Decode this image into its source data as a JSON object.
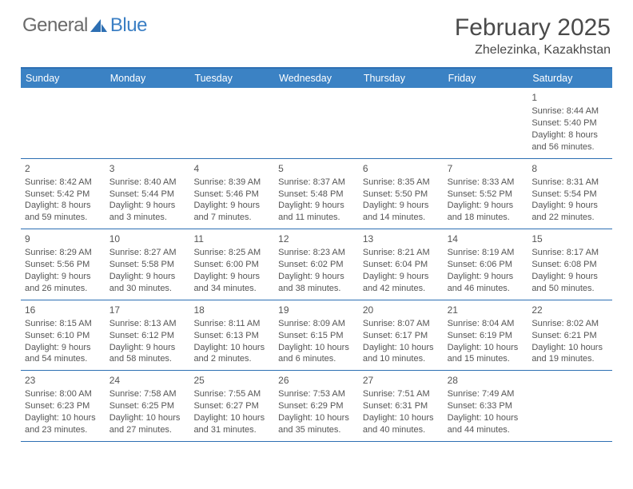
{
  "logo": {
    "text1": "General",
    "text2": "Blue"
  },
  "title": "February 2025",
  "location": "Zhelezinka, Kazakhstan",
  "colors": {
    "header_bar": "#3b82c4",
    "border": "#2d6fb3",
    "text": "#4a4a4a",
    "cell_text": "#555555",
    "logo_blue": "#3b7fc4",
    "logo_gray": "#6a6a6a",
    "background": "#ffffff"
  },
  "weekdays": [
    "Sunday",
    "Monday",
    "Tuesday",
    "Wednesday",
    "Thursday",
    "Friday",
    "Saturday"
  ],
  "weeks": [
    [
      null,
      null,
      null,
      null,
      null,
      null,
      {
        "n": "1",
        "sunrise": "8:44 AM",
        "sunset": "5:40 PM",
        "daylight": "8 hours and 56 minutes."
      }
    ],
    [
      {
        "n": "2",
        "sunrise": "8:42 AM",
        "sunset": "5:42 PM",
        "daylight": "8 hours and 59 minutes."
      },
      {
        "n": "3",
        "sunrise": "8:40 AM",
        "sunset": "5:44 PM",
        "daylight": "9 hours and 3 minutes."
      },
      {
        "n": "4",
        "sunrise": "8:39 AM",
        "sunset": "5:46 PM",
        "daylight": "9 hours and 7 minutes."
      },
      {
        "n": "5",
        "sunrise": "8:37 AM",
        "sunset": "5:48 PM",
        "daylight": "9 hours and 11 minutes."
      },
      {
        "n": "6",
        "sunrise": "8:35 AM",
        "sunset": "5:50 PM",
        "daylight": "9 hours and 14 minutes."
      },
      {
        "n": "7",
        "sunrise": "8:33 AM",
        "sunset": "5:52 PM",
        "daylight": "9 hours and 18 minutes."
      },
      {
        "n": "8",
        "sunrise": "8:31 AM",
        "sunset": "5:54 PM",
        "daylight": "9 hours and 22 minutes."
      }
    ],
    [
      {
        "n": "9",
        "sunrise": "8:29 AM",
        "sunset": "5:56 PM",
        "daylight": "9 hours and 26 minutes."
      },
      {
        "n": "10",
        "sunrise": "8:27 AM",
        "sunset": "5:58 PM",
        "daylight": "9 hours and 30 minutes."
      },
      {
        "n": "11",
        "sunrise": "8:25 AM",
        "sunset": "6:00 PM",
        "daylight": "9 hours and 34 minutes."
      },
      {
        "n": "12",
        "sunrise": "8:23 AM",
        "sunset": "6:02 PM",
        "daylight": "9 hours and 38 minutes."
      },
      {
        "n": "13",
        "sunrise": "8:21 AM",
        "sunset": "6:04 PM",
        "daylight": "9 hours and 42 minutes."
      },
      {
        "n": "14",
        "sunrise": "8:19 AM",
        "sunset": "6:06 PM",
        "daylight": "9 hours and 46 minutes."
      },
      {
        "n": "15",
        "sunrise": "8:17 AM",
        "sunset": "6:08 PM",
        "daylight": "9 hours and 50 minutes."
      }
    ],
    [
      {
        "n": "16",
        "sunrise": "8:15 AM",
        "sunset": "6:10 PM",
        "daylight": "9 hours and 54 minutes."
      },
      {
        "n": "17",
        "sunrise": "8:13 AM",
        "sunset": "6:12 PM",
        "daylight": "9 hours and 58 minutes."
      },
      {
        "n": "18",
        "sunrise": "8:11 AM",
        "sunset": "6:13 PM",
        "daylight": "10 hours and 2 minutes."
      },
      {
        "n": "19",
        "sunrise": "8:09 AM",
        "sunset": "6:15 PM",
        "daylight": "10 hours and 6 minutes."
      },
      {
        "n": "20",
        "sunrise": "8:07 AM",
        "sunset": "6:17 PM",
        "daylight": "10 hours and 10 minutes."
      },
      {
        "n": "21",
        "sunrise": "8:04 AM",
        "sunset": "6:19 PM",
        "daylight": "10 hours and 15 minutes."
      },
      {
        "n": "22",
        "sunrise": "8:02 AM",
        "sunset": "6:21 PM",
        "daylight": "10 hours and 19 minutes."
      }
    ],
    [
      {
        "n": "23",
        "sunrise": "8:00 AM",
        "sunset": "6:23 PM",
        "daylight": "10 hours and 23 minutes."
      },
      {
        "n": "24",
        "sunrise": "7:58 AM",
        "sunset": "6:25 PM",
        "daylight": "10 hours and 27 minutes."
      },
      {
        "n": "25",
        "sunrise": "7:55 AM",
        "sunset": "6:27 PM",
        "daylight": "10 hours and 31 minutes."
      },
      {
        "n": "26",
        "sunrise": "7:53 AM",
        "sunset": "6:29 PM",
        "daylight": "10 hours and 35 minutes."
      },
      {
        "n": "27",
        "sunrise": "7:51 AM",
        "sunset": "6:31 PM",
        "daylight": "10 hours and 40 minutes."
      },
      {
        "n": "28",
        "sunrise": "7:49 AM",
        "sunset": "6:33 PM",
        "daylight": "10 hours and 44 minutes."
      },
      null
    ]
  ],
  "labels": {
    "sunrise": "Sunrise: ",
    "sunset": "Sunset: ",
    "daylight": "Daylight: "
  }
}
